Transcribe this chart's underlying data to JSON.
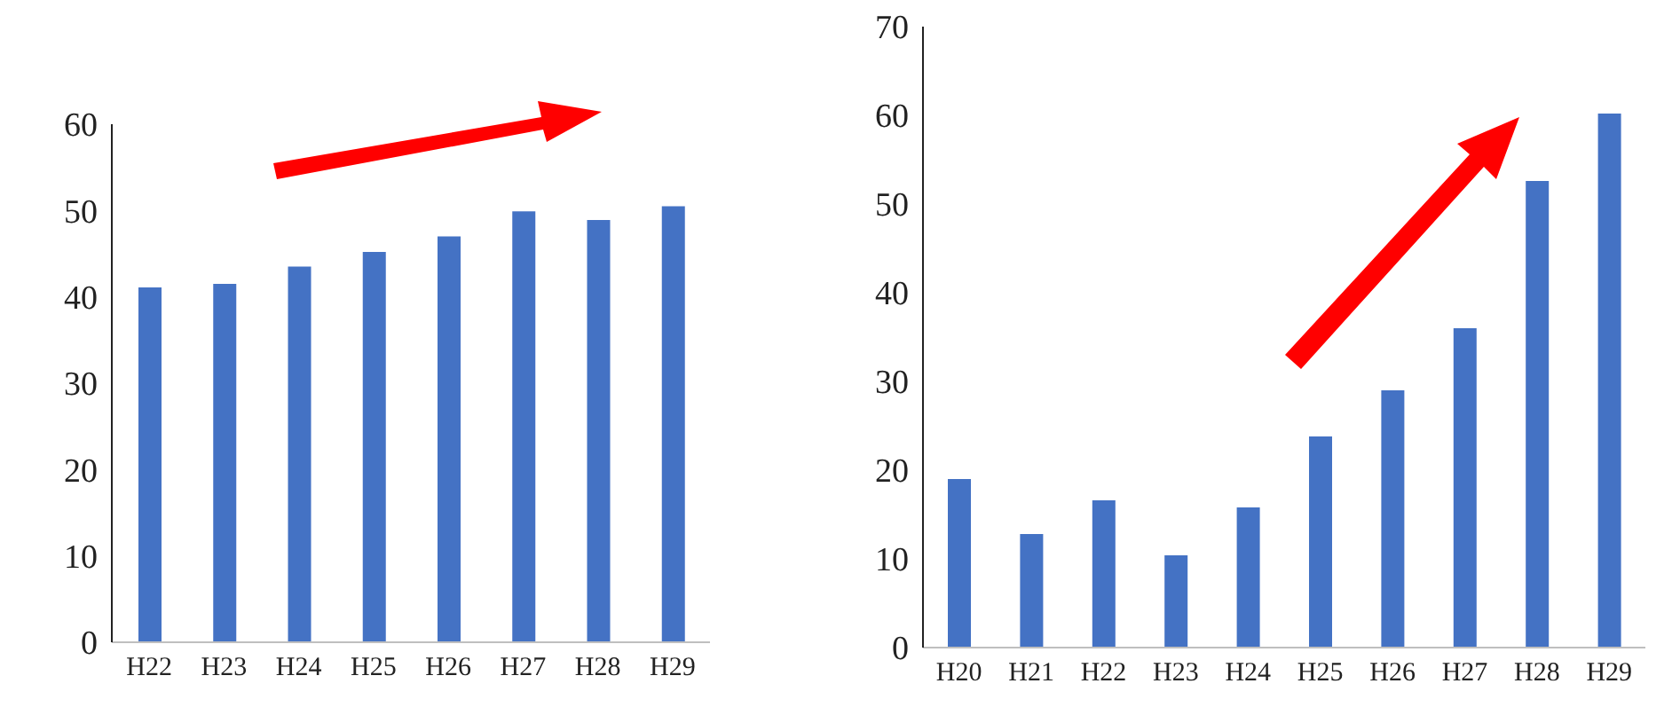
{
  "chart_data": [
    {
      "type": "bar",
      "categories": [
        "H22",
        "H23",
        "H24",
        "H25",
        "H26",
        "H27",
        "H28",
        "H29"
      ],
      "values": [
        41.1,
        41.5,
        43.5,
        45.2,
        47,
        49.9,
        48.9,
        50.5
      ],
      "color": "#4472c4",
      "ylim": [
        0,
        60
      ],
      "yticks": [
        0,
        10,
        20,
        30,
        40,
        50,
        60
      ],
      "grid": false
    },
    {
      "type": "bar",
      "categories": [
        "H20",
        "H21",
        "H22",
        "H23",
        "H24",
        "H25",
        "H26",
        "H27",
        "H28",
        "H29"
      ],
      "values": [
        19,
        12.8,
        16.6,
        10.4,
        15.8,
        23.8,
        29,
        36,
        52.6,
        60.2
      ],
      "color": "#4472c4",
      "ylim": [
        0,
        70
      ],
      "yticks": [
        0,
        10,
        20,
        30,
        40,
        50,
        60,
        70
      ],
      "grid": false
    }
  ]
}
